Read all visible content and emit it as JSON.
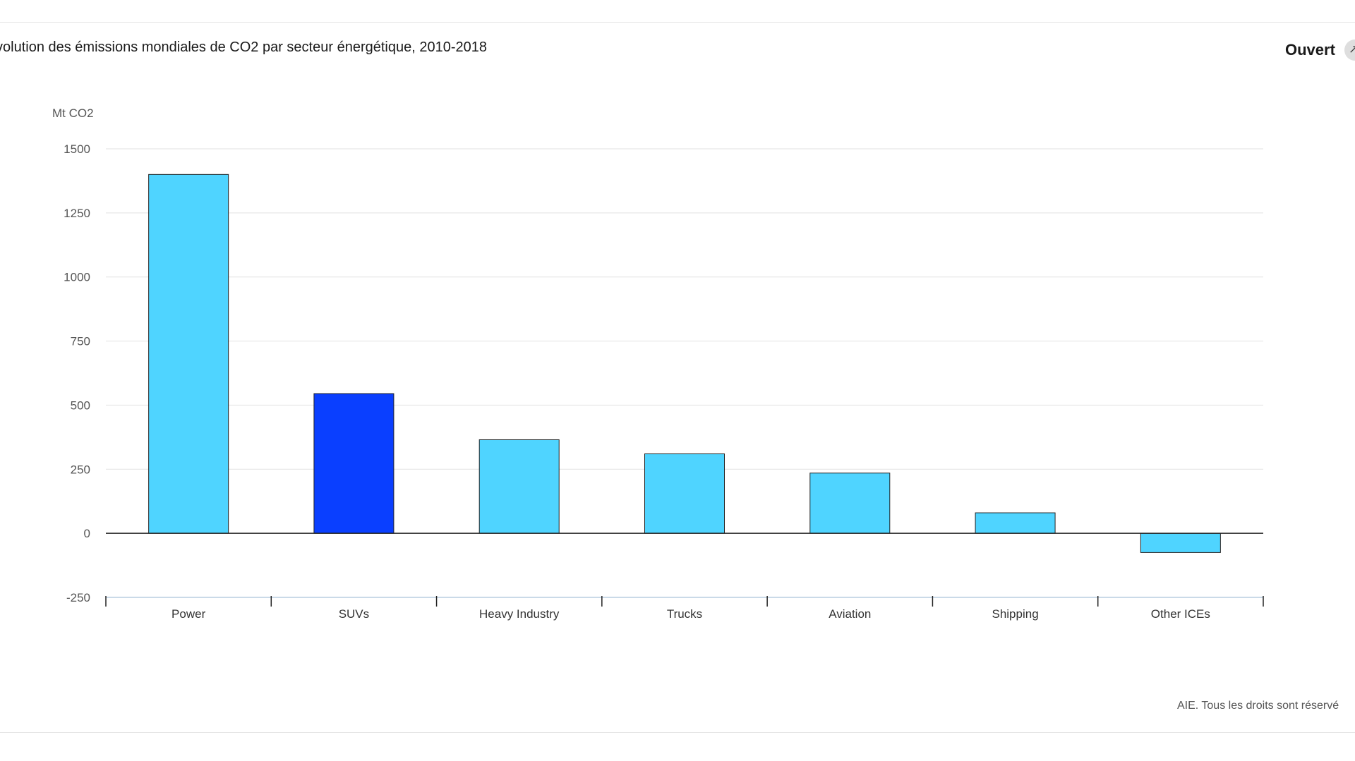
{
  "header": {
    "title": "volution des émissions mondiales de CO2 par secteur énergétique, 2010-2018",
    "open_label": "Ouvert",
    "open_icon": "expand-arrow-icon"
  },
  "footer": {
    "copyright": "AIE. Tous les droits sont réservé"
  },
  "colors": {
    "bar": "#4fd4ff",
    "bar_highlight": "#0a3fff",
    "bar_stroke": "#222222",
    "grid": "#e2e2e2",
    "zero_line": "#222222",
    "axis": "#b8cde0"
  },
  "chart_data": {
    "type": "bar",
    "title": "volution des émissions mondiales de CO2 par secteur énergétique, 2010-2018",
    "ylabel": "Mt CO2",
    "xlabel": "",
    "ylim": [
      -250,
      1500
    ],
    "yticks": [
      1500,
      1250,
      1000,
      750,
      500,
      250,
      0,
      -250
    ],
    "grid": true,
    "legend": "none",
    "categories": [
      "Power",
      "SUVs",
      "Heavy Industry",
      "Trucks",
      "Aviation",
      "Shipping",
      "Other ICEs"
    ],
    "values": [
      1400,
      545,
      365,
      310,
      235,
      80,
      -75
    ],
    "highlight_index": 1
  }
}
